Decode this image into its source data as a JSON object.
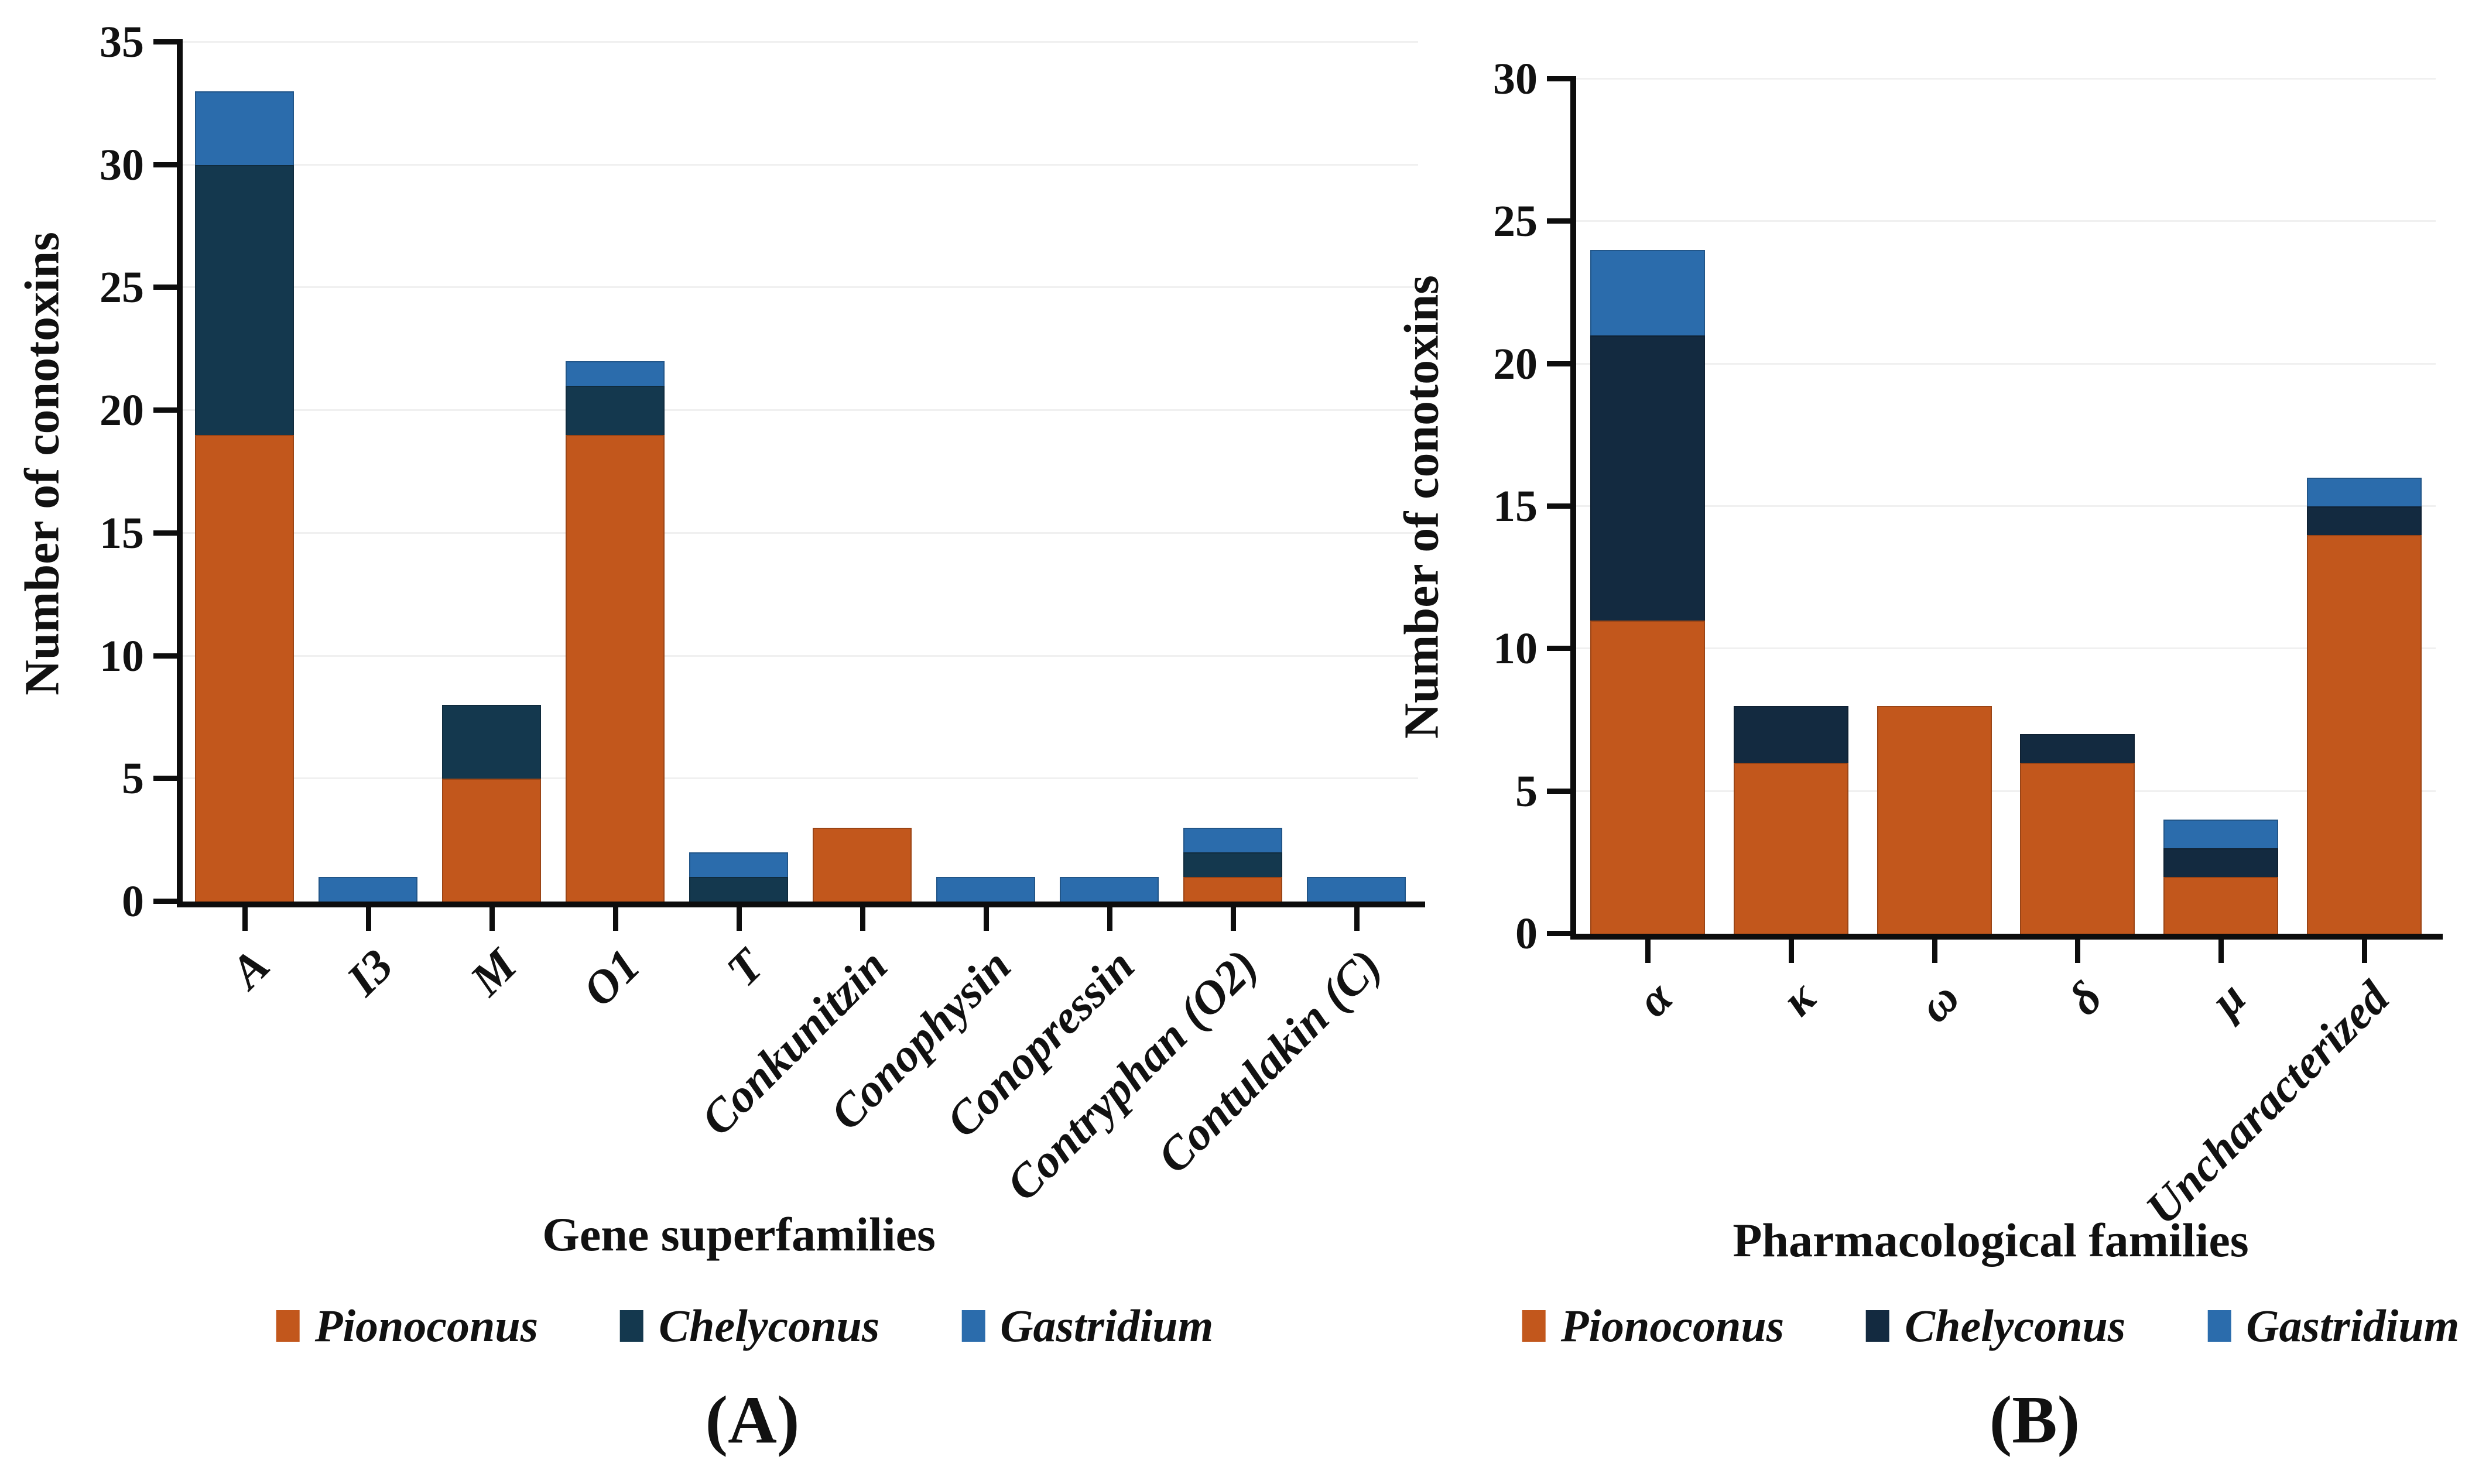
{
  "figure": {
    "background": "#FFFFFF",
    "caption_a": "(A)",
    "caption_b": "(B)"
  },
  "colors": {
    "axis": "#0D0D0D",
    "grid": "#F0F0F0",
    "text": "#111111",
    "pionoconus_orange": "#C2571C",
    "chelyconus_navy_panel_a": "#14384E",
    "chelyconus_navy_panel_b": "#132A40",
    "gastridium_blue": "#2B6CAC"
  },
  "chart_data": [
    {
      "id": "panel-a",
      "type": "bar",
      "stacked": true,
      "panel_label": "(A)",
      "xlabel": "Gene superfamilies",
      "ylabel": "Number of conotoxins",
      "ylim": [
        0,
        35
      ],
      "ytick_step": 5,
      "yticks": [
        0,
        5,
        10,
        15,
        20,
        25,
        30,
        35
      ],
      "grid": true,
      "legend_position": "bottom",
      "categories": [
        "A",
        "I3",
        "M",
        "O1",
        "T",
        "Conkunitzin",
        "Conophysin",
        "Conopressin",
        "Contryphan (O2)",
        "Contulakin (C)"
      ],
      "series": [
        {
          "name": "Pionoconus",
          "color": "#C2571C",
          "values": [
            19,
            0,
            5,
            19,
            0,
            3,
            0,
            0,
            1,
            0
          ]
        },
        {
          "name": "Chelyconus",
          "color": "#14384E",
          "values": [
            11,
            0,
            3,
            2,
            1,
            0,
            0,
            0,
            1,
            0
          ]
        },
        {
          "name": "Gastridium",
          "color": "#2B6CAC",
          "values": [
            3,
            1,
            0,
            1,
            1,
            0,
            1,
            1,
            1,
            1
          ]
        }
      ],
      "totals": [
        33,
        1,
        8,
        22,
        2,
        3,
        1,
        1,
        3,
        1
      ]
    },
    {
      "id": "panel-b",
      "type": "bar",
      "stacked": true,
      "panel_label": "(B)",
      "xlabel": "Pharmacological families",
      "ylabel": "Number of conotoxins",
      "ylim": [
        0,
        30
      ],
      "ytick_step": 5,
      "yticks": [
        0,
        5,
        10,
        15,
        20,
        25,
        30
      ],
      "grid": true,
      "legend_position": "bottom",
      "categories": [
        "α",
        "κ",
        "ω",
        "δ",
        "μ",
        "Uncharacterized"
      ],
      "series": [
        {
          "name": "Pionoconus",
          "color": "#C2571C",
          "values": [
            11,
            6,
            8,
            6,
            2,
            14
          ]
        },
        {
          "name": "Chelyconus",
          "color": "#132A40",
          "values": [
            10,
            2,
            0,
            1,
            1,
            1
          ]
        },
        {
          "name": "Gastridium",
          "color": "#2B6CAC",
          "values": [
            3,
            0,
            0,
            0,
            1,
            1
          ]
        }
      ],
      "totals": [
        24,
        8,
        8,
        7,
        4,
        16
      ]
    }
  ]
}
